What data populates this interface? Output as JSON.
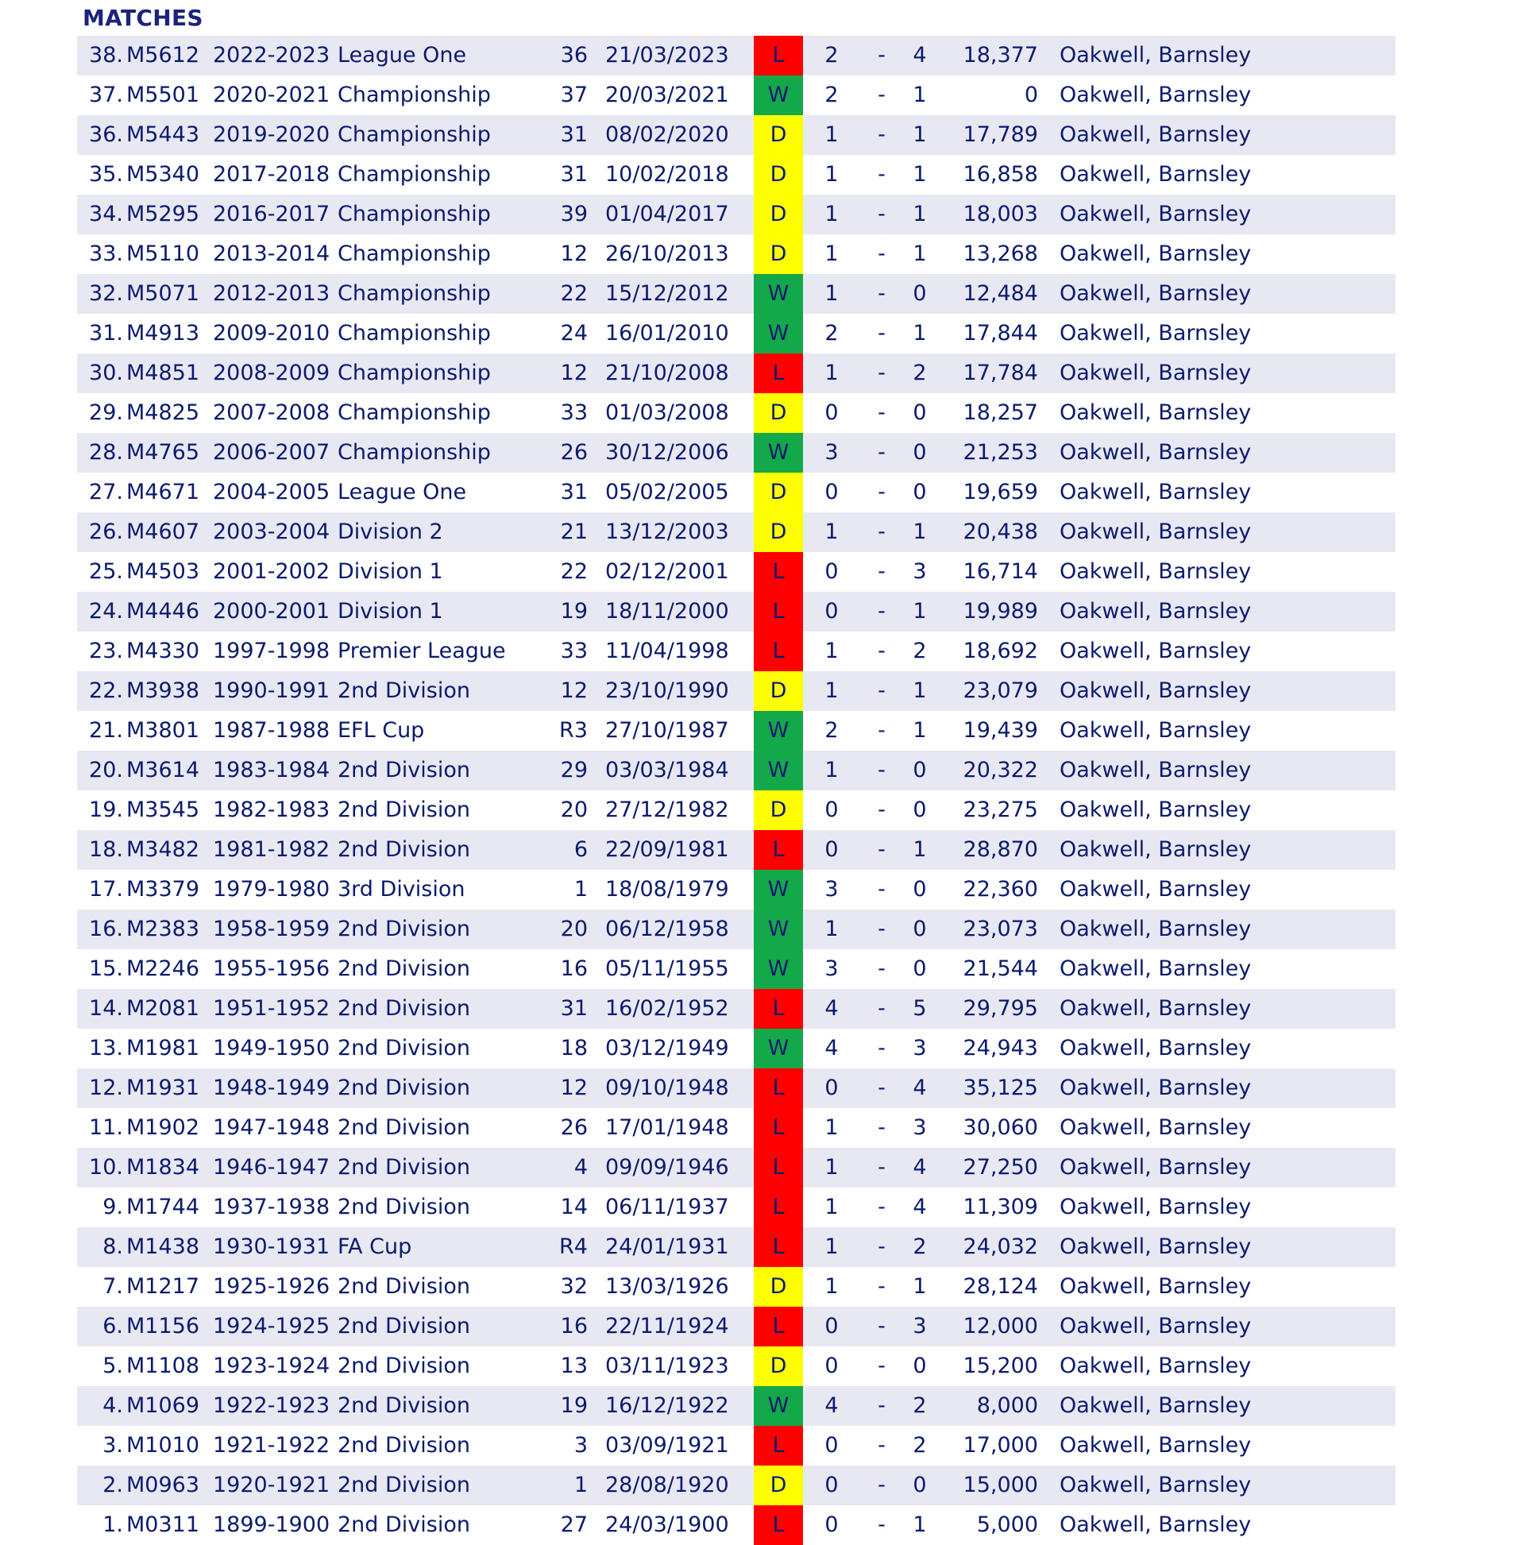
{
  "header": {
    "title": "MATCHES"
  },
  "colors": {
    "W": "#13a84a",
    "D": "#ffff00",
    "L": "#ff0000",
    "row_alt": "#e8e8f3",
    "text": "#0b1a6e"
  },
  "matches": [
    {
      "num": "38.",
      "id": "M5612",
      "season": "2022-2023",
      "competition": "League One",
      "round": "36",
      "date": "21/03/2023",
      "result": "L",
      "home": "2",
      "sep": "-",
      "away": "4",
      "attendance": "18,377",
      "venue": "Oakwell, Barnsley"
    },
    {
      "num": "37.",
      "id": "M5501",
      "season": "2020-2021",
      "competition": "Championship",
      "round": "37",
      "date": "20/03/2021",
      "result": "W",
      "home": "2",
      "sep": "-",
      "away": "1",
      "attendance": "0",
      "venue": "Oakwell, Barnsley"
    },
    {
      "num": "36.",
      "id": "M5443",
      "season": "2019-2020",
      "competition": "Championship",
      "round": "31",
      "date": "08/02/2020",
      "result": "D",
      "home": "1",
      "sep": "-",
      "away": "1",
      "attendance": "17,789",
      "venue": "Oakwell, Barnsley"
    },
    {
      "num": "35.",
      "id": "M5340",
      "season": "2017-2018",
      "competition": "Championship",
      "round": "31",
      "date": "10/02/2018",
      "result": "D",
      "home": "1",
      "sep": "-",
      "away": "1",
      "attendance": "16,858",
      "venue": "Oakwell, Barnsley"
    },
    {
      "num": "34.",
      "id": "M5295",
      "season": "2016-2017",
      "competition": "Championship",
      "round": "39",
      "date": "01/04/2017",
      "result": "D",
      "home": "1",
      "sep": "-",
      "away": "1",
      "attendance": "18,003",
      "venue": "Oakwell, Barnsley"
    },
    {
      "num": "33.",
      "id": "M5110",
      "season": "2013-2014",
      "competition": "Championship",
      "round": "12",
      "date": "26/10/2013",
      "result": "D",
      "home": "1",
      "sep": "-",
      "away": "1",
      "attendance": "13,268",
      "venue": "Oakwell, Barnsley"
    },
    {
      "num": "32.",
      "id": "M5071",
      "season": "2012-2013",
      "competition": "Championship",
      "round": "22",
      "date": "15/12/2012",
      "result": "W",
      "home": "1",
      "sep": "-",
      "away": "0",
      "attendance": "12,484",
      "venue": "Oakwell, Barnsley"
    },
    {
      "num": "31.",
      "id": "M4913",
      "season": "2009-2010",
      "competition": "Championship",
      "round": "24",
      "date": "16/01/2010",
      "result": "W",
      "home": "2",
      "sep": "-",
      "away": "1",
      "attendance": "17,844",
      "venue": "Oakwell, Barnsley"
    },
    {
      "num": "30.",
      "id": "M4851",
      "season": "2008-2009",
      "competition": "Championship",
      "round": "12",
      "date": "21/10/2008",
      "result": "L",
      "home": "1",
      "sep": "-",
      "away": "2",
      "attendance": "17,784",
      "venue": "Oakwell, Barnsley"
    },
    {
      "num": "29.",
      "id": "M4825",
      "season": "2007-2008",
      "competition": "Championship",
      "round": "33",
      "date": "01/03/2008",
      "result": "D",
      "home": "0",
      "sep": "-",
      "away": "0",
      "attendance": "18,257",
      "venue": "Oakwell, Barnsley"
    },
    {
      "num": "28.",
      "id": "M4765",
      "season": "2006-2007",
      "competition": "Championship",
      "round": "26",
      "date": "30/12/2006",
      "result": "W",
      "home": "3",
      "sep": "-",
      "away": "0",
      "attendance": "21,253",
      "venue": "Oakwell, Barnsley"
    },
    {
      "num": "27.",
      "id": "M4671",
      "season": "2004-2005",
      "competition": "League One",
      "round": "31",
      "date": "05/02/2005",
      "result": "D",
      "home": "0",
      "sep": "-",
      "away": "0",
      "attendance": "19,659",
      "venue": "Oakwell, Barnsley"
    },
    {
      "num": "26.",
      "id": "M4607",
      "season": "2003-2004",
      "competition": "Division 2",
      "round": "21",
      "date": "13/12/2003",
      "result": "D",
      "home": "1",
      "sep": "-",
      "away": "1",
      "attendance": "20,438",
      "venue": "Oakwell, Barnsley"
    },
    {
      "num": "25.",
      "id": "M4503",
      "season": "2001-2002",
      "competition": "Division 1",
      "round": "22",
      "date": "02/12/2001",
      "result": "L",
      "home": "0",
      "sep": "-",
      "away": "3",
      "attendance": "16,714",
      "venue": "Oakwell, Barnsley"
    },
    {
      "num": "24.",
      "id": "M4446",
      "season": "2000-2001",
      "competition": "Division 1",
      "round": "19",
      "date": "18/11/2000",
      "result": "L",
      "home": "0",
      "sep": "-",
      "away": "1",
      "attendance": "19,989",
      "venue": "Oakwell, Barnsley"
    },
    {
      "num": "23.",
      "id": "M4330",
      "season": "1997-1998",
      "competition": "Premier League",
      "round": "33",
      "date": "11/04/1998",
      "result": "L",
      "home": "1",
      "sep": "-",
      "away": "2",
      "attendance": "18,692",
      "venue": "Oakwell, Barnsley"
    },
    {
      "num": "22.",
      "id": "M3938",
      "season": "1990-1991",
      "competition": "2nd Division",
      "round": "12",
      "date": "23/10/1990",
      "result": "D",
      "home": "1",
      "sep": "-",
      "away": "1",
      "attendance": "23,079",
      "venue": "Oakwell, Barnsley"
    },
    {
      "num": "21.",
      "id": "M3801",
      "season": "1987-1988",
      "competition": "EFL Cup",
      "round": "R3",
      "date": "27/10/1987",
      "result": "W",
      "home": "2",
      "sep": "-",
      "away": "1",
      "attendance": "19,439",
      "venue": "Oakwell, Barnsley"
    },
    {
      "num": "20.",
      "id": "M3614",
      "season": "1983-1984",
      "competition": "2nd Division",
      "round": "29",
      "date": "03/03/1984",
      "result": "W",
      "home": "1",
      "sep": "-",
      "away": "0",
      "attendance": "20,322",
      "venue": "Oakwell, Barnsley"
    },
    {
      "num": "19.",
      "id": "M3545",
      "season": "1982-1983",
      "competition": "2nd Division",
      "round": "20",
      "date": "27/12/1982",
      "result": "D",
      "home": "0",
      "sep": "-",
      "away": "0",
      "attendance": "23,275",
      "venue": "Oakwell, Barnsley"
    },
    {
      "num": "18.",
      "id": "M3482",
      "season": "1981-1982",
      "competition": "2nd Division",
      "round": "6",
      "date": "22/09/1981",
      "result": "L",
      "home": "0",
      "sep": "-",
      "away": "1",
      "attendance": "28,870",
      "venue": "Oakwell, Barnsley"
    },
    {
      "num": "17.",
      "id": "M3379",
      "season": "1979-1980",
      "competition": "3rd Division",
      "round": "1",
      "date": "18/08/1979",
      "result": "W",
      "home": "3",
      "sep": "-",
      "away": "0",
      "attendance": "22,360",
      "venue": "Oakwell, Barnsley"
    },
    {
      "num": "16.",
      "id": "M2383",
      "season": "1958-1959",
      "competition": "2nd Division",
      "round": "20",
      "date": "06/12/1958",
      "result": "W",
      "home": "1",
      "sep": "-",
      "away": "0",
      "attendance": "23,073",
      "venue": "Oakwell, Barnsley"
    },
    {
      "num": "15.",
      "id": "M2246",
      "season": "1955-1956",
      "competition": "2nd Division",
      "round": "16",
      "date": "05/11/1955",
      "result": "W",
      "home": "3",
      "sep": "-",
      "away": "0",
      "attendance": "21,544",
      "venue": "Oakwell, Barnsley"
    },
    {
      "num": "14.",
      "id": "M2081",
      "season": "1951-1952",
      "competition": "2nd Division",
      "round": "31",
      "date": "16/02/1952",
      "result": "L",
      "home": "4",
      "sep": "-",
      "away": "5",
      "attendance": "29,795",
      "venue": "Oakwell, Barnsley"
    },
    {
      "num": "13.",
      "id": "M1981",
      "season": "1949-1950",
      "competition": "2nd Division",
      "round": "18",
      "date": "03/12/1949",
      "result": "W",
      "home": "4",
      "sep": "-",
      "away": "3",
      "attendance": "24,943",
      "venue": "Oakwell, Barnsley"
    },
    {
      "num": "12.",
      "id": "M1931",
      "season": "1948-1949",
      "competition": "2nd Division",
      "round": "12",
      "date": "09/10/1948",
      "result": "L",
      "home": "0",
      "sep": "-",
      "away": "4",
      "attendance": "35,125",
      "venue": "Oakwell, Barnsley"
    },
    {
      "num": "11.",
      "id": "M1902",
      "season": "1947-1948",
      "competition": "2nd Division",
      "round": "26",
      "date": "17/01/1948",
      "result": "L",
      "home": "1",
      "sep": "-",
      "away": "3",
      "attendance": "30,060",
      "venue": "Oakwell, Barnsley"
    },
    {
      "num": "10.",
      "id": "M1834",
      "season": "1946-1947",
      "competition": "2nd Division",
      "round": "4",
      "date": "09/09/1946",
      "result": "L",
      "home": "1",
      "sep": "-",
      "away": "4",
      "attendance": "27,250",
      "venue": "Oakwell, Barnsley"
    },
    {
      "num": "9.",
      "id": "M1744",
      "season": "1937-1938",
      "competition": "2nd Division",
      "round": "14",
      "date": "06/11/1937",
      "result": "L",
      "home": "1",
      "sep": "-",
      "away": "4",
      "attendance": "11,309",
      "venue": "Oakwell, Barnsley"
    },
    {
      "num": "8.",
      "id": "M1438",
      "season": "1930-1931",
      "competition": "FA Cup",
      "round": "R4",
      "date": "24/01/1931",
      "result": "L",
      "home": "1",
      "sep": "-",
      "away": "2",
      "attendance": "24,032",
      "venue": "Oakwell, Barnsley"
    },
    {
      "num": "7.",
      "id": "M1217",
      "season": "1925-1926",
      "competition": "2nd Division",
      "round": "32",
      "date": "13/03/1926",
      "result": "D",
      "home": "1",
      "sep": "-",
      "away": "1",
      "attendance": "28,124",
      "venue": "Oakwell, Barnsley"
    },
    {
      "num": "6.",
      "id": "M1156",
      "season": "1924-1925",
      "competition": "2nd Division",
      "round": "16",
      "date": "22/11/1924",
      "result": "L",
      "home": "0",
      "sep": "-",
      "away": "3",
      "attendance": "12,000",
      "venue": "Oakwell, Barnsley"
    },
    {
      "num": "5.",
      "id": "M1108",
      "season": "1923-1924",
      "competition": "2nd Division",
      "round": "13",
      "date": "03/11/1923",
      "result": "D",
      "home": "0",
      "sep": "-",
      "away": "0",
      "attendance": "15,200",
      "venue": "Oakwell, Barnsley"
    },
    {
      "num": "4.",
      "id": "M1069",
      "season": "1922-1923",
      "competition": "2nd Division",
      "round": "19",
      "date": "16/12/1922",
      "result": "W",
      "home": "4",
      "sep": "-",
      "away": "2",
      "attendance": "8,000",
      "venue": "Oakwell, Barnsley"
    },
    {
      "num": "3.",
      "id": "M1010",
      "season": "1921-1922",
      "competition": "2nd Division",
      "round": "3",
      "date": "03/09/1921",
      "result": "L",
      "home": "0",
      "sep": "-",
      "away": "2",
      "attendance": "17,000",
      "venue": "Oakwell, Barnsley"
    },
    {
      "num": "2.",
      "id": "M0963",
      "season": "1920-1921",
      "competition": "2nd Division",
      "round": "1",
      "date": "28/08/1920",
      "result": "D",
      "home": "0",
      "sep": "-",
      "away": "0",
      "attendance": "15,000",
      "venue": "Oakwell, Barnsley"
    },
    {
      "num": "1.",
      "id": "M0311",
      "season": "1899-1900",
      "competition": "2nd Division",
      "round": "27",
      "date": "24/03/1900",
      "result": "L",
      "home": "0",
      "sep": "-",
      "away": "1",
      "attendance": "5,000",
      "venue": "Oakwell, Barnsley"
    }
  ]
}
